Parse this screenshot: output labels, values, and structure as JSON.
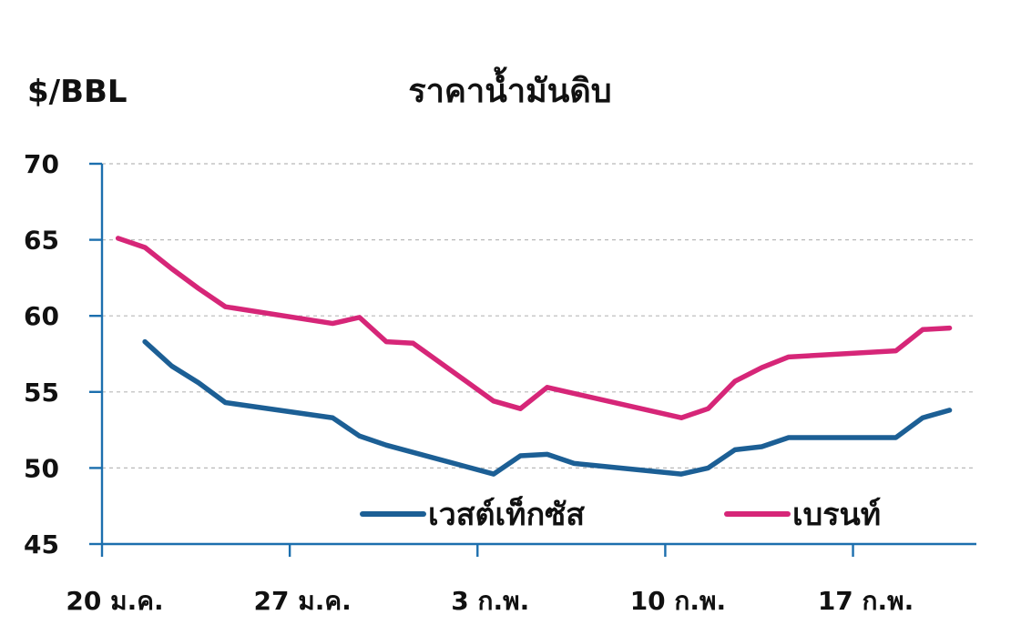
{
  "chart_data": {
    "type": "line",
    "title": "ราคาน้ำมันดิบ",
    "ylabel": "$/BBL",
    "xlabel": "",
    "ylim": [
      45,
      70
    ],
    "yticks": [
      45,
      50,
      55,
      60,
      65,
      70
    ],
    "grid": true,
    "legend_position": "bottom-right",
    "x_ticks": [
      {
        "day": 0,
        "label": "20 ม.ค."
      },
      {
        "day": 7,
        "label": "27 ม.ค."
      },
      {
        "day": 14,
        "label": "3 ก.พ."
      },
      {
        "day": 21,
        "label": "10 ก.พ."
      },
      {
        "day": 28,
        "label": "17 ก.พ."
      }
    ],
    "series": [
      {
        "name": "เวสต์เท็กซัส",
        "color": "#1c5f95",
        "points": [
          {
            "day": 1.6,
            "value": 58.3
          },
          {
            "day": 2.6,
            "value": 56.7
          },
          {
            "day": 3.6,
            "value": 55.6
          },
          {
            "day": 4.6,
            "value": 54.3
          },
          {
            "day": 8.6,
            "value": 53.3
          },
          {
            "day": 9.6,
            "value": 52.1
          },
          {
            "day": 10.6,
            "value": 51.5
          },
          {
            "day": 14.6,
            "value": 49.6
          },
          {
            "day": 15.6,
            "value": 50.8
          },
          {
            "day": 16.6,
            "value": 50.9
          },
          {
            "day": 17.6,
            "value": 50.3
          },
          {
            "day": 21.6,
            "value": 49.6
          },
          {
            "day": 22.6,
            "value": 50.0
          },
          {
            "day": 23.6,
            "value": 51.2
          },
          {
            "day": 24.6,
            "value": 51.4
          },
          {
            "day": 25.6,
            "value": 52.0
          },
          {
            "day": 29.6,
            "value": 52.0
          },
          {
            "day": 30.6,
            "value": 53.3
          },
          {
            "day": 31.6,
            "value": 53.8
          }
        ]
      },
      {
        "name": "เบรนท์",
        "color": "#d62678",
        "points": [
          {
            "day": 0.6,
            "value": 65.1
          },
          {
            "day": 1.6,
            "value": 64.5
          },
          {
            "day": 2.6,
            "value": 63.1
          },
          {
            "day": 3.6,
            "value": 61.8
          },
          {
            "day": 4.6,
            "value": 60.6
          },
          {
            "day": 8.6,
            "value": 59.5
          },
          {
            "day": 9.6,
            "value": 59.9
          },
          {
            "day": 10.6,
            "value": 58.3
          },
          {
            "day": 11.6,
            "value": 58.2
          },
          {
            "day": 14.6,
            "value": 54.4
          },
          {
            "day": 15.6,
            "value": 53.9
          },
          {
            "day": 16.6,
            "value": 55.3
          },
          {
            "day": 21.6,
            "value": 53.3
          },
          {
            "day": 22.6,
            "value": 53.9
          },
          {
            "day": 23.6,
            "value": 55.7
          },
          {
            "day": 24.6,
            "value": 56.6
          },
          {
            "day": 25.6,
            "value": 57.3
          },
          {
            "day": 29.6,
            "value": 57.7
          },
          {
            "day": 30.6,
            "value": 59.1
          },
          {
            "day": 31.6,
            "value": 59.2
          }
        ]
      }
    ]
  }
}
